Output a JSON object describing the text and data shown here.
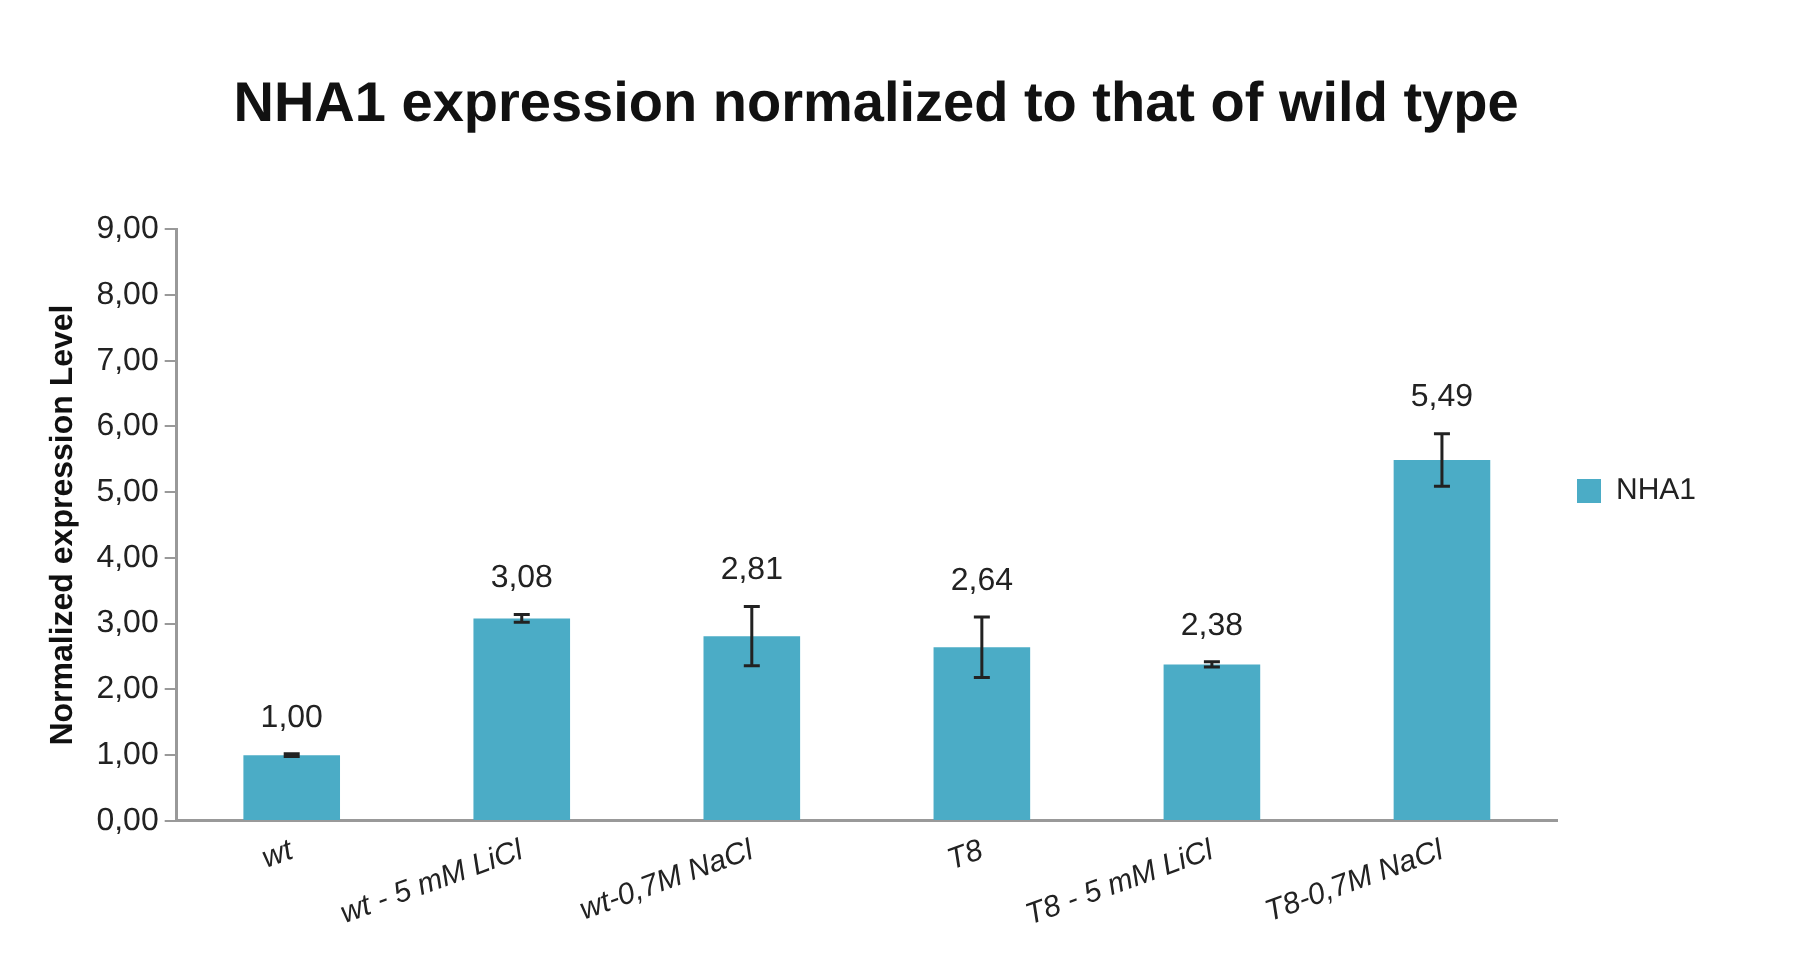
{
  "chart_data": {
    "type": "bar",
    "title": "NHA1 expression normalized to that of wild type",
    "ylabel": "Normalized expression Level",
    "categories": [
      "wt",
      "wt - 5 mM LiCl",
      "wt-0,7M NaCl",
      "T8",
      "T8 - 5 mM LiCl",
      "T8-0,7M NaCl"
    ],
    "series": [
      {
        "name": "NHA1",
        "color": "#4bacc6",
        "values": [
          1.0,
          3.08,
          2.81,
          2.64,
          2.38,
          5.49
        ],
        "errors": [
          0.02,
          0.06,
          0.45,
          0.46,
          0.04,
          0.4
        ],
        "value_labels": [
          "1,00",
          "3,08",
          "2,81",
          "2,64",
          "2,38",
          "5,49"
        ]
      }
    ],
    "ylim": [
      0,
      9
    ],
    "yticks": [
      {
        "value": 0,
        "label": "0,00"
      },
      {
        "value": 1,
        "label": "1,00"
      },
      {
        "value": 2,
        "label": "2,00"
      },
      {
        "value": 3,
        "label": "3,00"
      },
      {
        "value": 4,
        "label": "4,00"
      },
      {
        "value": 5,
        "label": "5,00"
      },
      {
        "value": 6,
        "label": "6,00"
      },
      {
        "value": 7,
        "label": "7,00"
      },
      {
        "value": 8,
        "label": "8,00"
      },
      {
        "value": 9,
        "label": "9,00"
      }
    ],
    "grid": false,
    "legend": "right"
  }
}
